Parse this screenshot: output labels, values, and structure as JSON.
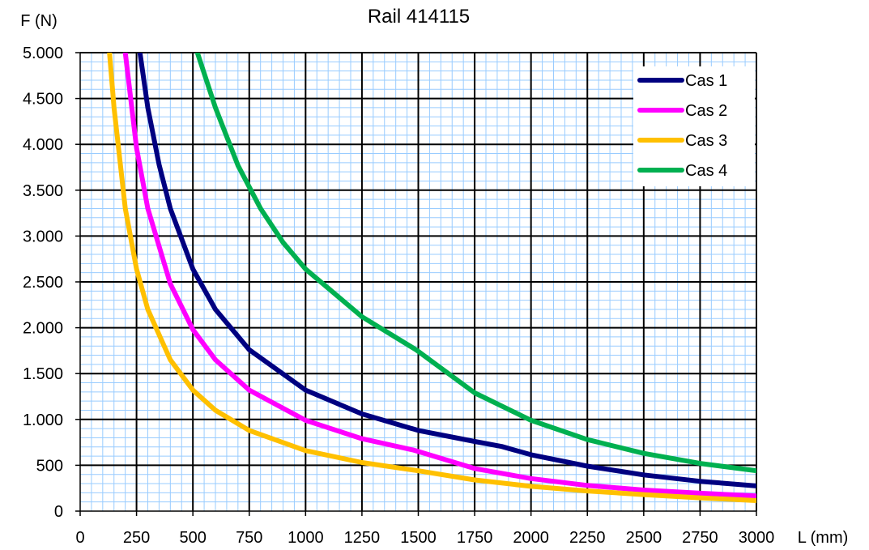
{
  "chart_data": {
    "type": "line",
    "title": "Rail 414115",
    "xlabel": "L (mm)",
    "ylabel": "F (N)",
    "xlim": [
      0,
      3000
    ],
    "ylim": [
      0,
      5000
    ],
    "x_ticks": [
      0,
      250,
      500,
      750,
      1000,
      1250,
      1500,
      1750,
      2000,
      2250,
      2500,
      2750,
      3000
    ],
    "x_tick_labels": [
      "0",
      "250",
      "500",
      "750",
      "1000",
      "1250",
      "1500",
      "1750",
      "2000",
      "2250",
      "2500",
      "2750",
      "3000"
    ],
    "y_ticks": [
      0,
      500,
      1000,
      1500,
      2000,
      2500,
      3000,
      3500,
      4000,
      4500,
      5000
    ],
    "y_tick_labels": [
      "0",
      "500",
      "1.000",
      "1.500",
      "2.000",
      "2.500",
      "3.000",
      "3.500",
      "4.000",
      "4.500",
      "5.000"
    ],
    "minor_x_step": 50,
    "minor_y_step": 100,
    "grid": true,
    "legend_position": "top-right",
    "series": [
      {
        "name": "Cas 1",
        "color": "#000080",
        "points": [
          [
            265,
            5000
          ],
          [
            300,
            4400
          ],
          [
            350,
            3780
          ],
          [
            400,
            3300
          ],
          [
            500,
            2640
          ],
          [
            600,
            2200
          ],
          [
            750,
            1760
          ],
          [
            1000,
            1320
          ],
          [
            1250,
            1060
          ],
          [
            1500,
            880
          ],
          [
            1750,
            760
          ],
          [
            1870,
            705
          ],
          [
            2000,
            615
          ],
          [
            2250,
            490
          ],
          [
            2500,
            395
          ],
          [
            2750,
            325
          ],
          [
            3000,
            275
          ]
        ]
      },
      {
        "name": "Cas 2",
        "color": "#ff00ff",
        "points": [
          [
            200,
            5000
          ],
          [
            250,
            3960
          ],
          [
            300,
            3300
          ],
          [
            400,
            2480
          ],
          [
            500,
            1980
          ],
          [
            600,
            1650
          ],
          [
            750,
            1320
          ],
          [
            1000,
            990
          ],
          [
            1250,
            790
          ],
          [
            1480,
            665
          ],
          [
            1500,
            650
          ],
          [
            1750,
            465
          ],
          [
            2000,
            355
          ],
          [
            2250,
            280
          ],
          [
            2500,
            230
          ],
          [
            2750,
            195
          ],
          [
            3000,
            165
          ]
        ]
      },
      {
        "name": "Cas 3",
        "color": "#ffc000",
        "points": [
          [
            130,
            5000
          ],
          [
            150,
            4400
          ],
          [
            200,
            3300
          ],
          [
            250,
            2640
          ],
          [
            300,
            2200
          ],
          [
            400,
            1650
          ],
          [
            500,
            1320
          ],
          [
            600,
            1100
          ],
          [
            750,
            880
          ],
          [
            1000,
            660
          ],
          [
            1250,
            530
          ],
          [
            1500,
            440
          ],
          [
            1750,
            340
          ],
          [
            2000,
            270
          ],
          [
            2250,
            220
          ],
          [
            2500,
            180
          ],
          [
            2750,
            145
          ],
          [
            3000,
            115
          ]
        ]
      },
      {
        "name": "Cas 4",
        "color": "#00b050",
        "points": [
          [
            520,
            5000
          ],
          [
            600,
            4400
          ],
          [
            700,
            3770
          ],
          [
            800,
            3300
          ],
          [
            900,
            2930
          ],
          [
            1000,
            2640
          ],
          [
            1250,
            2120
          ],
          [
            1490,
            1760
          ],
          [
            1750,
            1290
          ],
          [
            2000,
            990
          ],
          [
            2250,
            780
          ],
          [
            2500,
            630
          ],
          [
            2750,
            520
          ],
          [
            3000,
            440
          ]
        ]
      }
    ]
  }
}
